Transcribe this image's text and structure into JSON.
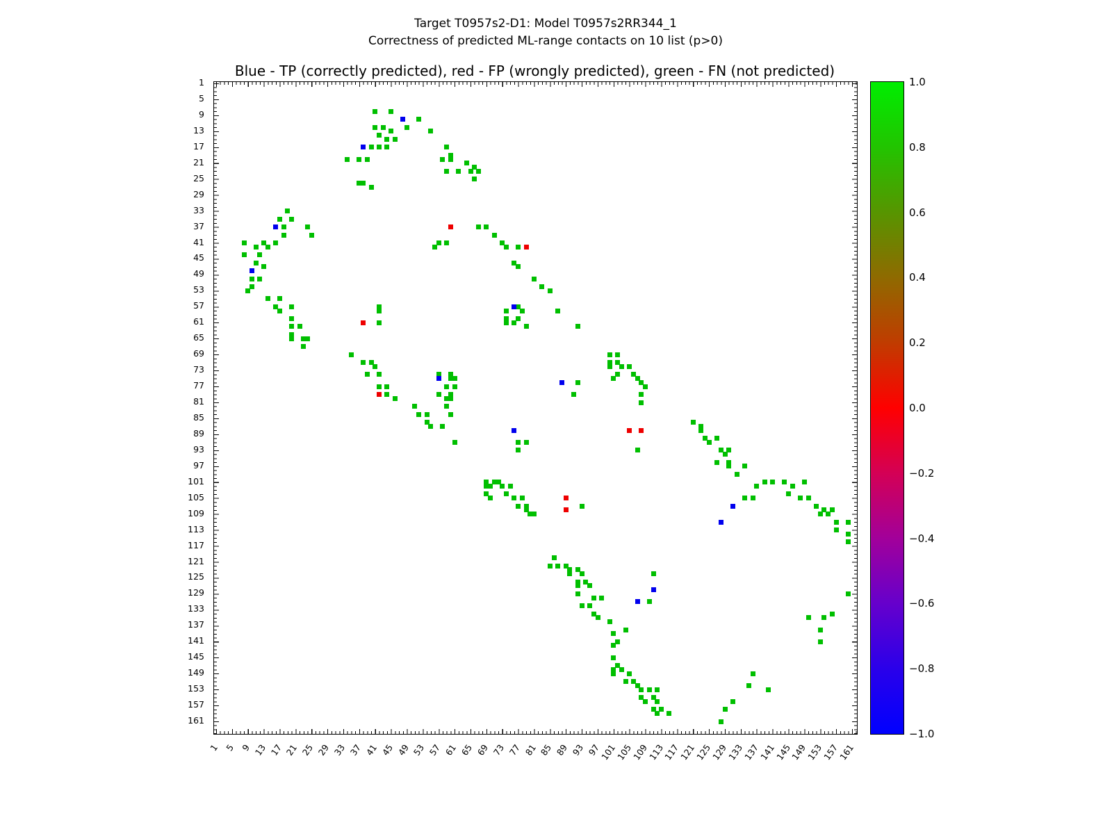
{
  "header": {
    "title_line1": "Target T0957s2-D1: Model T0957s2RR344_1",
    "title_line2": "Correctness of predicted ML-range contacts on 10 list (p>0)"
  },
  "chart_data": {
    "type": "scatter",
    "title": "Blue - TP (correctly predicted), red - FP (wrongly predicted), green - FN (not predicted)",
    "xlabel": "",
    "ylabel": "",
    "xlim": [
      1,
      163
    ],
    "ylim": [
      1,
      163
    ],
    "y_axis_inverted": true,
    "grid": false,
    "tick_labels": [
      1,
      5,
      9,
      13,
      17,
      21,
      25,
      29,
      33,
      37,
      41,
      45,
      49,
      53,
      57,
      61,
      65,
      69,
      73,
      77,
      81,
      85,
      89,
      93,
      97,
      101,
      105,
      109,
      113,
      117,
      121,
      125,
      129,
      133,
      137,
      141,
      145,
      149,
      153,
      157,
      161
    ],
    "colorbar": {
      "min": -1.0,
      "max": 1.0,
      "tick_labels": [
        "1.0",
        "0.8",
        "0.6",
        "0.4",
        "0.2",
        "0.0",
        "−0.2",
        "−0.4",
        "−0.6",
        "−0.8",
        "−1.0"
      ],
      "gradient_stops_bottom_to_top": [
        "#0000ff",
        "#2a00ea",
        "#6600cc",
        "#a2009a",
        "#d40055",
        "#ff0000",
        "#c03c00",
        "#8f6a00",
        "#579500",
        "#22c400",
        "#00ee00"
      ]
    },
    "series": [
      {
        "key": "fn",
        "name": "FN (not predicted)",
        "color": "#00bf00",
        "points": [
          [
            41,
            8
          ],
          [
            45,
            8
          ],
          [
            52,
            10
          ],
          [
            41,
            12
          ],
          [
            43,
            12
          ],
          [
            49,
            12
          ],
          [
            45,
            13
          ],
          [
            55,
            13
          ],
          [
            42,
            14
          ],
          [
            44,
            15
          ],
          [
            46,
            15
          ],
          [
            40,
            17
          ],
          [
            42,
            17
          ],
          [
            44,
            17
          ],
          [
            59,
            17
          ],
          [
            60,
            19
          ],
          [
            34,
            20
          ],
          [
            37,
            20
          ],
          [
            39,
            20
          ],
          [
            58,
            20
          ],
          [
            60,
            20
          ],
          [
            64,
            21
          ],
          [
            66,
            22
          ],
          [
            59,
            23
          ],
          [
            62,
            23
          ],
          [
            65,
            23
          ],
          [
            67,
            23
          ],
          [
            66,
            25
          ],
          [
            37,
            26
          ],
          [
            38,
            26
          ],
          [
            40,
            27
          ],
          [
            19,
            33
          ],
          [
            17,
            35
          ],
          [
            20,
            35
          ],
          [
            18,
            37
          ],
          [
            24,
            37
          ],
          [
            67,
            37
          ],
          [
            69,
            37
          ],
          [
            18,
            39
          ],
          [
            25,
            39
          ],
          [
            71,
            39
          ],
          [
            8,
            41
          ],
          [
            13,
            41
          ],
          [
            16,
            41
          ],
          [
            57,
            41
          ],
          [
            59,
            41
          ],
          [
            73,
            41
          ],
          [
            11,
            42
          ],
          [
            14,
            42
          ],
          [
            56,
            42
          ],
          [
            74,
            42
          ],
          [
            77,
            42
          ],
          [
            8,
            44
          ],
          [
            12,
            44
          ],
          [
            11,
            46
          ],
          [
            76,
            46
          ],
          [
            13,
            47
          ],
          [
            77,
            47
          ],
          [
            10,
            50
          ],
          [
            12,
            50
          ],
          [
            81,
            50
          ],
          [
            10,
            52
          ],
          [
            83,
            52
          ],
          [
            9,
            53
          ],
          [
            85,
            53
          ],
          [
            14,
            55
          ],
          [
            17,
            55
          ],
          [
            16,
            57
          ],
          [
            20,
            57
          ],
          [
            42,
            57
          ],
          [
            77,
            57
          ],
          [
            17,
            58
          ],
          [
            42,
            58
          ],
          [
            74,
            58
          ],
          [
            78,
            58
          ],
          [
            87,
            58
          ],
          [
            20,
            60
          ],
          [
            74,
            60
          ],
          [
            77,
            60
          ],
          [
            42,
            61
          ],
          [
            74,
            61
          ],
          [
            76,
            61
          ],
          [
            20,
            62
          ],
          [
            22,
            62
          ],
          [
            79,
            62
          ],
          [
            92,
            62
          ],
          [
            20,
            64
          ],
          [
            20,
            65
          ],
          [
            23,
            65
          ],
          [
            24,
            65
          ],
          [
            23,
            67
          ],
          [
            35,
            69
          ],
          [
            100,
            69
          ],
          [
            102,
            69
          ],
          [
            38,
            71
          ],
          [
            40,
            71
          ],
          [
            100,
            71
          ],
          [
            102,
            71
          ],
          [
            41,
            72
          ],
          [
            100,
            72
          ],
          [
            103,
            72
          ],
          [
            105,
            72
          ],
          [
            39,
            74
          ],
          [
            42,
            74
          ],
          [
            57,
            74
          ],
          [
            60,
            74
          ],
          [
            102,
            74
          ],
          [
            106,
            74
          ],
          [
            60,
            75
          ],
          [
            61,
            75
          ],
          [
            101,
            75
          ],
          [
            107,
            75
          ],
          [
            92,
            76
          ],
          [
            108,
            76
          ],
          [
            42,
            77
          ],
          [
            44,
            77
          ],
          [
            59,
            77
          ],
          [
            61,
            77
          ],
          [
            109,
            77
          ],
          [
            44,
            79
          ],
          [
            57,
            79
          ],
          [
            60,
            79
          ],
          [
            91,
            79
          ],
          [
            108,
            79
          ],
          [
            46,
            80
          ],
          [
            59,
            80
          ],
          [
            60,
            80
          ],
          [
            108,
            81
          ],
          [
            51,
            82
          ],
          [
            59,
            82
          ],
          [
            52,
            84
          ],
          [
            54,
            84
          ],
          [
            60,
            84
          ],
          [
            54,
            86
          ],
          [
            121,
            86
          ],
          [
            55,
            87
          ],
          [
            58,
            87
          ],
          [
            123,
            87
          ],
          [
            123,
            88
          ],
          [
            124,
            90
          ],
          [
            127,
            90
          ],
          [
            61,
            91
          ],
          [
            77,
            91
          ],
          [
            79,
            91
          ],
          [
            125,
            91
          ],
          [
            77,
            93
          ],
          [
            107,
            93
          ],
          [
            128,
            93
          ],
          [
            130,
            93
          ],
          [
            129,
            94
          ],
          [
            127,
            96
          ],
          [
            130,
            96
          ],
          [
            130,
            97
          ],
          [
            134,
            97
          ],
          [
            132,
            99
          ],
          [
            69,
            101
          ],
          [
            71,
            101
          ],
          [
            72,
            101
          ],
          [
            139,
            101
          ],
          [
            141,
            101
          ],
          [
            144,
            101
          ],
          [
            149,
            101
          ],
          [
            69,
            102
          ],
          [
            70,
            102
          ],
          [
            73,
            102
          ],
          [
            75,
            102
          ],
          [
            137,
            102
          ],
          [
            146,
            102
          ],
          [
            69,
            104
          ],
          [
            74,
            104
          ],
          [
            145,
            104
          ],
          [
            70,
            105
          ],
          [
            76,
            105
          ],
          [
            78,
            105
          ],
          [
            134,
            105
          ],
          [
            136,
            105
          ],
          [
            148,
            105
          ],
          [
            150,
            105
          ],
          [
            77,
            107
          ],
          [
            79,
            107
          ],
          [
            93,
            107
          ],
          [
            152,
            107
          ],
          [
            79,
            108
          ],
          [
            154,
            108
          ],
          [
            156,
            108
          ],
          [
            80,
            109
          ],
          [
            81,
            109
          ],
          [
            153,
            109
          ],
          [
            155,
            109
          ],
          [
            157,
            111
          ],
          [
            160,
            111
          ],
          [
            157,
            113
          ],
          [
            160,
            114
          ],
          [
            160,
            116
          ],
          [
            86,
            120
          ],
          [
            85,
            122
          ],
          [
            87,
            122
          ],
          [
            89,
            122
          ],
          [
            90,
            123
          ],
          [
            92,
            123
          ],
          [
            90,
            124
          ],
          [
            93,
            124
          ],
          [
            111,
            124
          ],
          [
            92,
            126
          ],
          [
            94,
            126
          ],
          [
            92,
            127
          ],
          [
            95,
            127
          ],
          [
            92,
            129
          ],
          [
            160,
            129
          ],
          [
            96,
            130
          ],
          [
            98,
            130
          ],
          [
            110,
            131
          ],
          [
            93,
            132
          ],
          [
            95,
            132
          ],
          [
            96,
            134
          ],
          [
            156,
            134
          ],
          [
            97,
            135
          ],
          [
            150,
            135
          ],
          [
            154,
            135
          ],
          [
            100,
            136
          ],
          [
            104,
            138
          ],
          [
            153,
            138
          ],
          [
            101,
            139
          ],
          [
            102,
            141
          ],
          [
            153,
            141
          ],
          [
            101,
            142
          ],
          [
            101,
            145
          ],
          [
            102,
            147
          ],
          [
            101,
            148
          ],
          [
            103,
            148
          ],
          [
            101,
            149
          ],
          [
            105,
            149
          ],
          [
            136,
            149
          ],
          [
            104,
            151
          ],
          [
            106,
            151
          ],
          [
            107,
            152
          ],
          [
            135,
            152
          ],
          [
            108,
            153
          ],
          [
            110,
            153
          ],
          [
            112,
            153
          ],
          [
            140,
            153
          ],
          [
            108,
            155
          ],
          [
            111,
            155
          ],
          [
            109,
            156
          ],
          [
            112,
            156
          ],
          [
            131,
            156
          ],
          [
            111,
            158
          ],
          [
            113,
            158
          ],
          [
            129,
            158
          ],
          [
            112,
            159
          ],
          [
            115,
            159
          ],
          [
            128,
            161
          ]
        ]
      },
      {
        "key": "tp",
        "name": "TP (correctly predicted)",
        "color": "#0000ee",
        "points": [
          [
            48,
            10
          ],
          [
            38,
            17
          ],
          [
            16,
            37
          ],
          [
            10,
            48
          ],
          [
            76,
            57
          ],
          [
            57,
            75
          ],
          [
            88,
            76
          ],
          [
            76,
            88
          ],
          [
            131,
            107
          ],
          [
            128,
            111
          ],
          [
            111,
            128
          ],
          [
            107,
            131
          ]
        ]
      },
      {
        "key": "fp",
        "name": "FP (wrongly predicted)",
        "color": "#ee0000",
        "points": [
          [
            60,
            37
          ],
          [
            79,
            42
          ],
          [
            38,
            61
          ],
          [
            42,
            79
          ],
          [
            105,
            88
          ],
          [
            108,
            88
          ],
          [
            89,
            105
          ],
          [
            89,
            108
          ]
        ]
      }
    ]
  }
}
